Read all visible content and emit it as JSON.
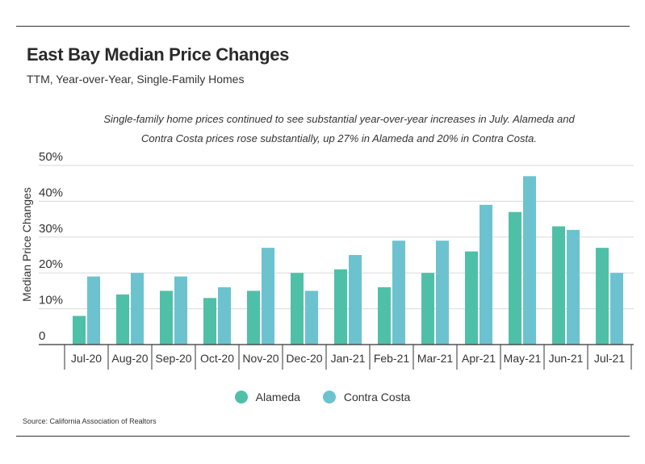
{
  "header": {
    "title": "East Bay Median Price Changes",
    "subtitle": "TTM, Year-over-Year, Single-Family Homes"
  },
  "note": "Single-family home prices continued to see substantial year-over-year increases in July. Alameda and Contra Costa prices rose substantially, up 27% in Alameda and 20% in Contra Costa.",
  "source": "Source:  California Association of Realtors",
  "colors": {
    "alameda": "#4fc0a8",
    "contra_costa": "#6cc3cf"
  },
  "chart_data": {
    "type": "bar",
    "ylabel": "Median Price Changes",
    "ylim": [
      0,
      50
    ],
    "yticks": [
      0,
      10,
      20,
      30,
      40,
      50
    ],
    "ytick_labels": [
      "0",
      "10%",
      "20%",
      "30%",
      "40%",
      "50%"
    ],
    "grid": true,
    "legend_position": "bottom",
    "categories": [
      "Jul-20",
      "Aug-20",
      "Sep-20",
      "Oct-20",
      "Nov-20",
      "Dec-20",
      "Jan-21",
      "Feb-21",
      "Mar-21",
      "Apr-21",
      "May-21",
      "Jun-21",
      "Jul-21"
    ],
    "series": [
      {
        "name": "Alameda",
        "values": [
          8,
          14,
          15,
          13,
          15,
          20,
          21,
          16,
          20,
          26,
          37,
          33,
          27
        ]
      },
      {
        "name": "Contra Costa",
        "values": [
          19,
          20,
          19,
          16,
          27,
          15,
          25,
          29,
          29,
          39,
          47,
          32,
          20
        ]
      }
    ]
  }
}
